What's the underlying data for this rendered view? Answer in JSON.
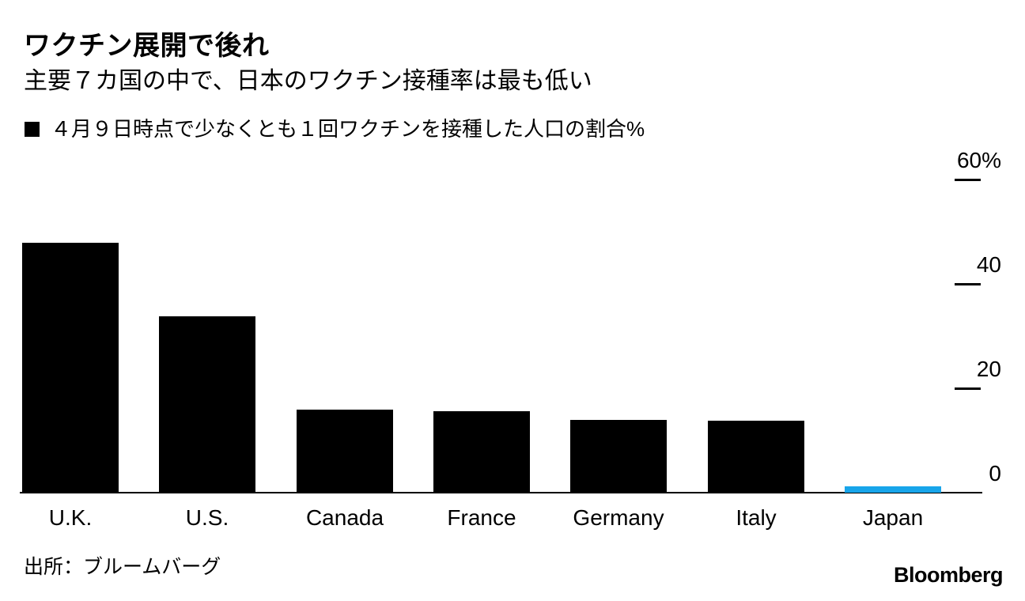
{
  "header": {
    "title": "ワクチン展開で後れ",
    "subtitle": "主要７カ国の中で、日本のワクチン接種率は最も低い"
  },
  "legend": {
    "label": "４月９日時点で少なくとも１回ワクチンを接種した人口の割合%"
  },
  "footer": {
    "source": "出所：ブルームバーグ",
    "brand": "Bloomberg"
  },
  "colors": {
    "bar_default": "#000000",
    "bar_highlight": "#18a5ea",
    "axis": "#000000",
    "text": "#000000",
    "background": "#ffffff"
  },
  "chart_data": {
    "type": "bar",
    "title": "ワクチン展開で後れ",
    "subtitle": "主要７カ国の中で、日本のワクチン接種率は最も低い",
    "series_label": "４月９日時点で少なくとも１回ワクチンを接種した人口の割合%",
    "categories": [
      "U.K.",
      "U.S.",
      "Canada",
      "France",
      "Germany",
      "Italy",
      "Japan"
    ],
    "values": [
      47.9,
      33.8,
      15.9,
      15.6,
      13.9,
      13.8,
      1.2
    ],
    "highlight_category": "Japan",
    "xlabel": "",
    "ylabel": "%",
    "ylim": [
      0,
      60
    ],
    "yticks": [
      {
        "value": 60,
        "label": "60%"
      },
      {
        "value": 40,
        "label": "40"
      },
      {
        "value": 20,
        "label": "20"
      },
      {
        "value": 0,
        "label": "0"
      }
    ],
    "grid": "right-side tick dashes only",
    "legend_position": "top-left",
    "axis_labels_position": "right"
  }
}
